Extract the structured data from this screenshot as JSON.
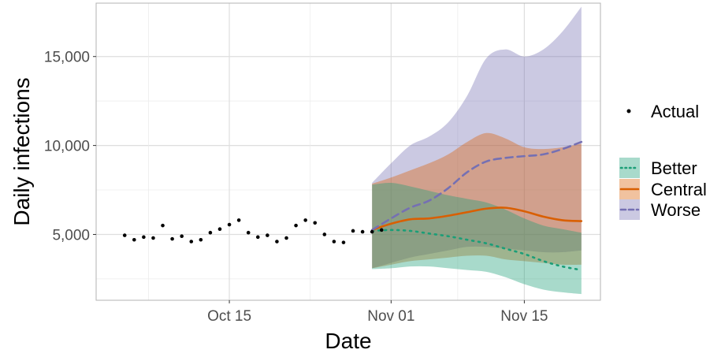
{
  "chart_data": {
    "type": "line",
    "title": "",
    "xlabel": "Date",
    "ylabel": "Daily infections",
    "xlim": [
      "2020-10-01",
      "2020-11-23"
    ],
    "ylim": [
      1300,
      18000
    ],
    "x_ticks": [
      {
        "date": "2020-10-15",
        "label": "Oct 15"
      },
      {
        "date": "2020-11-01",
        "label": "Nov 01"
      },
      {
        "date": "2020-11-15",
        "label": "Nov 15"
      }
    ],
    "y_ticks": [
      {
        "value": 5000,
        "label": "5,000"
      },
      {
        "value": 10000,
        "label": "10,000"
      },
      {
        "value": 15000,
        "label": "15,000"
      }
    ],
    "grid": true,
    "legend_position": "right",
    "actual": {
      "name": "Actual",
      "color": "#000000",
      "x": [
        "2020-10-04",
        "2020-10-05",
        "2020-10-06",
        "2020-10-07",
        "2020-10-08",
        "2020-10-09",
        "2020-10-10",
        "2020-10-11",
        "2020-10-12",
        "2020-10-13",
        "2020-10-14",
        "2020-10-15",
        "2020-10-16",
        "2020-10-17",
        "2020-10-18",
        "2020-10-19",
        "2020-10-20",
        "2020-10-21",
        "2020-10-22",
        "2020-10-23",
        "2020-10-24",
        "2020-10-25",
        "2020-10-26",
        "2020-10-27",
        "2020-10-28",
        "2020-10-29",
        "2020-10-30",
        "2020-10-31"
      ],
      "y": [
        4950,
        4700,
        4850,
        4800,
        5500,
        4750,
        4900,
        4600,
        4700,
        5100,
        5300,
        5550,
        5800,
        5100,
        4850,
        4950,
        4600,
        4800,
        5500,
        5800,
        5650,
        5000,
        4600,
        4550,
        5200,
        5150,
        5150,
        5250
      ]
    },
    "scenarios": [
      {
        "name": "Better",
        "line_color": "#1b9e77",
        "fill_color": "#1b9e77",
        "dash": "dotted",
        "x": [
          "2020-10-30",
          "2020-11-01",
          "2020-11-03",
          "2020-11-05",
          "2020-11-07",
          "2020-11-09",
          "2020-11-11",
          "2020-11-13",
          "2020-11-15",
          "2020-11-17",
          "2020-11-19",
          "2020-11-21"
        ],
        "median": [
          5200,
          5250,
          5200,
          5050,
          4900,
          4700,
          4500,
          4200,
          3900,
          3500,
          3200,
          3000
        ],
        "lower": [
          3050,
          3100,
          3200,
          3200,
          3100,
          3000,
          2900,
          2600,
          2200,
          1900,
          1750,
          1650
        ],
        "upper": [
          7800,
          7900,
          7700,
          7450,
          7200,
          7000,
          6800,
          6400,
          5900,
          5500,
          5300,
          5100
        ]
      },
      {
        "name": "Central",
        "line_color": "#d95f02",
        "fill_color": "#d95f02",
        "dash": "solid",
        "x": [
          "2020-10-30",
          "2020-11-01",
          "2020-11-03",
          "2020-11-05",
          "2020-11-07",
          "2020-11-09",
          "2020-11-11",
          "2020-11-13",
          "2020-11-15",
          "2020-11-17",
          "2020-11-19",
          "2020-11-21"
        ],
        "median": [
          5250,
          5600,
          5850,
          5900,
          6050,
          6250,
          6450,
          6500,
          6300,
          6000,
          5800,
          5750
        ],
        "lower": [
          3100,
          3300,
          3500,
          3600,
          3700,
          3800,
          3800,
          3600,
          3500,
          3400,
          3300,
          3300
        ],
        "upper": [
          7850,
          8200,
          8600,
          9000,
          9500,
          10200,
          10700,
          10400,
          9900,
          9800,
          9900,
          10100
        ]
      },
      {
        "name": "Worse",
        "line_color": "#7570b3",
        "fill_color": "#7570b3",
        "dash": "dashed",
        "x": [
          "2020-10-30",
          "2020-11-01",
          "2020-11-03",
          "2020-11-05",
          "2020-11-07",
          "2020-11-09",
          "2020-11-11",
          "2020-11-13",
          "2020-11-15",
          "2020-11-17",
          "2020-11-19",
          "2020-11-21"
        ],
        "median": [
          5250,
          5900,
          6500,
          6900,
          7600,
          8500,
          9100,
          9300,
          9400,
          9500,
          9800,
          10200
        ],
        "lower": [
          3100,
          3400,
          3700,
          3900,
          4100,
          4300,
          4300,
          4200,
          4100,
          4000,
          4000,
          4100
        ],
        "upper": [
          7900,
          9000,
          10000,
          10500,
          11300,
          12800,
          14900,
          15400,
          15000,
          15400,
          16400,
          17800
        ]
      }
    ],
    "legend": {
      "actual_label": "Actual",
      "scenario_labels": [
        "Better",
        "Central",
        "Worse"
      ]
    }
  }
}
